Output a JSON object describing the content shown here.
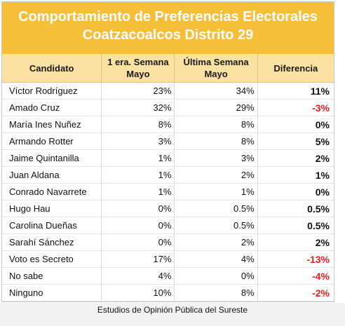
{
  "title": {
    "line1": "Comportamiento de Preferencias Electorales",
    "line2": "Coatzacoalcos Distrito 29"
  },
  "headers": {
    "candidato": "Candidato",
    "semana1": "1 era. Semana Mayo",
    "ultima": "Última Semana Mayo",
    "diferencia": "Diferencia"
  },
  "rows": [
    {
      "name": "Víctor Rodríguez",
      "first": "23%",
      "last": "34%",
      "diff": "11%",
      "neg": false
    },
    {
      "name": "Amado Cruz",
      "first": "32%",
      "last": "29%",
      "diff": "-3%",
      "neg": true
    },
    {
      "name": "María Ines Nuñez",
      "first": "8%",
      "last": "8%",
      "diff": "0%",
      "neg": false
    },
    {
      "name": "Armando Rotter",
      "first": "3%",
      "last": "8%",
      "diff": "5%",
      "neg": false
    },
    {
      "name": "Jaime Quintanilla",
      "first": "1%",
      "last": "3%",
      "diff": "2%",
      "neg": false
    },
    {
      "name": "Juan Aldana",
      "first": "1%",
      "last": "2%",
      "diff": "1%",
      "neg": false
    },
    {
      "name": "Conrado Navarrete",
      "first": "1%",
      "last": "1%",
      "diff": "0%",
      "neg": false
    },
    {
      "name": "Hugo Hau",
      "first": "0%",
      "last": "0.5%",
      "diff": "0.5%",
      "neg": false
    },
    {
      "name": "Carolina Dueñas",
      "first": "0%",
      "last": "0.5%",
      "diff": "0.5%",
      "neg": false
    },
    {
      "name": "Sarahí Sánchez",
      "first": "0%",
      "last": "2%",
      "diff": "2%",
      "neg": false
    },
    {
      "name": "Voto es Secreto",
      "first": "17%",
      "last": "4%",
      "diff": "-13%",
      "neg": true
    },
    {
      "name": "No sabe",
      "first": "4%",
      "last": "0%",
      "diff": "-4%",
      "neg": true
    },
    {
      "name": "Ninguno",
      "first": "10%",
      "last": "8%",
      "diff": "-2%",
      "neg": true
    }
  ],
  "footer": "Estudios de Opinión Pública del Sureste",
  "colors": {
    "title_bg": "#f5bf3a",
    "header_bg": "#fbe2a2",
    "negative": "#e0231b"
  }
}
